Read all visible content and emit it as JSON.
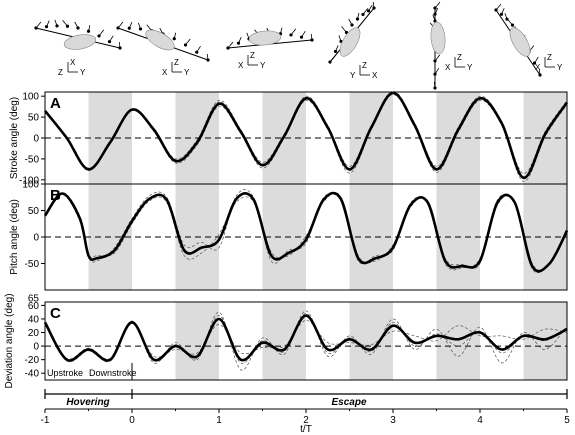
{
  "colors": {
    "shade": "#dcdcdc",
    "mean_line": "#000000",
    "indiv_line": "#555555",
    "zero_line": "#000000"
  },
  "header_panel": {
    "images": [
      {
        "name": "wing-sketch-1",
        "axes": [
          "X",
          "Z",
          "Y"
        ]
      },
      {
        "name": "wing-sketch-2",
        "axes": [
          "Z",
          "X",
          "Y"
        ]
      },
      {
        "name": "wing-sketch-3",
        "axes": [
          "Z",
          "X",
          "Y"
        ]
      },
      {
        "name": "wing-sketch-4",
        "axes": [
          "Z",
          "Y",
          "X"
        ]
      },
      {
        "name": "wing-sketch-5",
        "axes": [
          "Z",
          "X",
          "Y"
        ]
      },
      {
        "name": "wing-sketch-6",
        "axes": [
          "Z",
          "X",
          "Y"
        ]
      }
    ]
  },
  "labels": {
    "upstroke": "Upstroke",
    "downstroke": "Downstroke",
    "hovering": "Hovering",
    "escape": "Escape"
  },
  "chart_data": [
    {
      "type": "line",
      "panel": "A",
      "ylabel": "Stroke angle (deg)",
      "ylim": [
        -110,
        110
      ],
      "yticks": [
        -100,
        -50,
        0,
        50,
        100
      ],
      "xlim": [
        -1,
        5
      ],
      "shaded_intervals": [
        [
          -0.5,
          0
        ],
        [
          0.5,
          1
        ],
        [
          1.5,
          2
        ],
        [
          2.5,
          3
        ],
        [
          3.5,
          4
        ],
        [
          4.5,
          5
        ]
      ],
      "zero_line": 0,
      "series": [
        {
          "role": "mean",
          "x": [
            -1,
            -0.75,
            -0.5,
            -0.25,
            0,
            0.25,
            0.5,
            0.75,
            1,
            1.25,
            1.5,
            1.75,
            2,
            2.25,
            2.5,
            2.75,
            3,
            3.25,
            3.5,
            3.75,
            4,
            4.25,
            4.5,
            4.75,
            5
          ],
          "y": [
            65,
            0,
            -75,
            -10,
            68,
            20,
            -55,
            -10,
            82,
            15,
            -65,
            5,
            95,
            25,
            -75,
            25,
            108,
            30,
            -75,
            20,
            95,
            35,
            -95,
            10,
            85
          ]
        },
        {
          "role": "individual",
          "x": [
            -1,
            -0.75,
            -0.5,
            -0.25,
            0,
            0.25,
            0.5,
            0.75,
            1,
            1.25,
            1.5,
            1.75,
            2,
            2.25,
            2.5,
            2.75,
            3,
            3.25,
            3.5,
            3.75,
            4,
            4.25,
            4.5,
            4.75,
            5
          ],
          "y": [
            64,
            3,
            -72,
            -8,
            70,
            24,
            -50,
            -4,
            90,
            20,
            -58,
            10,
            100,
            30,
            -68,
            30,
            112,
            35,
            -68,
            26,
            100,
            40,
            -85,
            16,
            90
          ]
        },
        {
          "role": "individual",
          "x": [
            -1,
            -0.75,
            -0.5,
            -0.25,
            0,
            0.25,
            0.5,
            0.75,
            1,
            1.25,
            1.5,
            1.75,
            2,
            2.25,
            2.5,
            2.75,
            3,
            3.25,
            3.5,
            3.75,
            4,
            4.25,
            4.5,
            4.75,
            5
          ],
          "y": [
            66,
            -3,
            -78,
            -12,
            66,
            16,
            -60,
            -16,
            76,
            10,
            -72,
            0,
            90,
            20,
            -84,
            20,
            104,
            25,
            -82,
            14,
            90,
            30,
            -104,
            4,
            80
          ]
        },
        {
          "role": "individual",
          "x": [
            -1,
            -0.75,
            -0.5,
            -0.25,
            0,
            0.25,
            0.5,
            0.75,
            1,
            1.25,
            1.5,
            1.75,
            2,
            2.25,
            2.5,
            2.75,
            3,
            3.25,
            3.5,
            3.75,
            4,
            4.25,
            4.5,
            4.75,
            5
          ],
          "y": [
            65,
            1,
            -75,
            -9,
            68,
            22,
            -52,
            -8,
            86,
            16,
            -62,
            8,
            97,
            27,
            -78,
            27,
            108,
            32,
            -72,
            22,
            96,
            38,
            -98,
            12,
            86
          ]
        }
      ]
    },
    {
      "type": "line",
      "panel": "B",
      "ylabel": "Pitch angle (deg)",
      "ylim": [
        -100,
        100
      ],
      "yticks": [
        -50,
        0,
        50,
        100
      ],
      "xlim": [
        -1,
        5
      ],
      "shaded_intervals": [
        [
          -0.5,
          0
        ],
        [
          0.5,
          1
        ],
        [
          1.5,
          2
        ],
        [
          2.5,
          3
        ],
        [
          3.5,
          4
        ],
        [
          4.5,
          5
        ]
      ],
      "zero_line": 0,
      "series": [
        {
          "role": "mean",
          "x": [
            -1,
            -0.8,
            -0.6,
            -0.5,
            -0.4,
            -0.2,
            0,
            0.2,
            0.4,
            0.6,
            0.8,
            1,
            1.2,
            1.4,
            1.6,
            1.8,
            2,
            2.2,
            2.4,
            2.6,
            2.8,
            3,
            3.2,
            3.4,
            3.6,
            3.8,
            4,
            4.2,
            4.4,
            4.6,
            4.8,
            5
          ],
          "y": [
            40,
            82,
            35,
            -35,
            -40,
            -25,
            30,
            72,
            70,
            -25,
            -20,
            -5,
            72,
            70,
            -35,
            -30,
            -5,
            70,
            72,
            -40,
            -40,
            -20,
            60,
            65,
            -45,
            -55,
            -45,
            65,
            65,
            -55,
            -50,
            12
          ]
        },
        {
          "role": "individual",
          "x": [
            -1,
            -0.8,
            -0.6,
            -0.5,
            -0.4,
            -0.2,
            0,
            0.2,
            0.4,
            0.6,
            0.8,
            1,
            1.2,
            1.4,
            1.6,
            1.8,
            2,
            2.2,
            2.4,
            2.6,
            2.8,
            3,
            3.2,
            3.4,
            3.6,
            3.8,
            4,
            4.2,
            4.4,
            4.6,
            4.8,
            5
          ],
          "y": [
            38,
            80,
            30,
            -38,
            -45,
            -20,
            35,
            78,
            75,
            -15,
            -10,
            -20,
            78,
            74,
            -45,
            -25,
            -12,
            74,
            68,
            -45,
            -35,
            -25,
            64,
            62,
            -50,
            -58,
            -40,
            70,
            62,
            -60,
            -48,
            8
          ]
        },
        {
          "role": "individual",
          "x": [
            -1,
            -0.8,
            -0.6,
            -0.5,
            -0.4,
            -0.2,
            0,
            0.2,
            0.4,
            0.6,
            0.8,
            1,
            1.2,
            1.4,
            1.6,
            1.8,
            2,
            2.2,
            2.4,
            2.6,
            2.8,
            3,
            3.2,
            3.4,
            3.6,
            3.8,
            4,
            4.2,
            4.4,
            4.6,
            4.8,
            5
          ],
          "y": [
            42,
            84,
            40,
            -32,
            -35,
            -30,
            25,
            68,
            65,
            -35,
            -30,
            5,
            66,
            66,
            -28,
            -35,
            2,
            66,
            76,
            -35,
            -45,
            -15,
            56,
            68,
            -40,
            -52,
            -50,
            60,
            68,
            -50,
            -52,
            16
          ]
        }
      ]
    },
    {
      "type": "line",
      "panel": "C",
      "ylabel": "Deviation angle (deg)",
      "ylim": [
        -50,
        65
      ],
      "yticks": [
        -40,
        -20,
        0,
        20,
        40,
        60
      ],
      "extra_ytick": 65,
      "xlim": [
        -1,
        5
      ],
      "xticks": [
        -1,
        0,
        1,
        2,
        3,
        4,
        5
      ],
      "xlabel": "t/T",
      "shaded_intervals": [
        [
          0.5,
          1
        ],
        [
          1.5,
          2
        ],
        [
          2.5,
          3
        ],
        [
          3.5,
          4
        ],
        [
          4.5,
          5
        ]
      ],
      "zero_line": 0,
      "series": [
        {
          "role": "mean",
          "x": [
            -1,
            -0.75,
            -0.5,
            -0.25,
            0,
            0.25,
            0.5,
            0.75,
            1,
            1.25,
            1.5,
            1.75,
            2,
            2.25,
            2.5,
            2.75,
            3,
            3.25,
            3.5,
            3.75,
            4,
            4.25,
            4.5,
            4.75,
            5
          ],
          "y": [
            35,
            -20,
            -5,
            -20,
            35,
            -20,
            0,
            -15,
            40,
            -20,
            5,
            -5,
            45,
            -5,
            10,
            -5,
            30,
            5,
            15,
            10,
            20,
            -5,
            15,
            10,
            25
          ]
        },
        {
          "role": "individual",
          "x": [
            -1,
            -0.75,
            -0.5,
            -0.25,
            0,
            0.25,
            0.5,
            0.75,
            1,
            1.25,
            1.5,
            1.75,
            2,
            2.25,
            2.5,
            2.75,
            3,
            3.25,
            3.5,
            3.75,
            4,
            4.25,
            4.5,
            4.75,
            5
          ],
          "y": [
            34,
            -18,
            -3,
            -18,
            37,
            -25,
            5,
            -20,
            50,
            -35,
            12,
            -12,
            52,
            -15,
            15,
            -12,
            40,
            -5,
            25,
            -15,
            28,
            -25,
            20,
            -5,
            30
          ]
        },
        {
          "role": "individual",
          "x": [
            -1,
            -0.75,
            -0.5,
            -0.25,
            0,
            0.25,
            0.5,
            0.75,
            1,
            1.25,
            1.5,
            1.75,
            2,
            2.25,
            2.5,
            2.75,
            3,
            3.25,
            3.5,
            3.75,
            4,
            4.25,
            4.5,
            4.75,
            5
          ],
          "y": [
            36,
            -22,
            -7,
            -22,
            33,
            -15,
            -5,
            -10,
            32,
            -10,
            -2,
            0,
            38,
            5,
            5,
            2,
            22,
            15,
            8,
            30,
            15,
            15,
            10,
            25,
            20
          ]
        },
        {
          "role": "individual",
          "x": [
            -1,
            -0.75,
            -0.5,
            -0.25,
            0,
            0.25,
            0.5,
            0.75,
            1,
            1.25,
            1.5,
            1.75,
            2,
            2.25,
            2.5,
            2.75,
            3,
            3.25,
            3.5,
            3.75,
            4,
            4.25,
            4.5,
            4.75,
            5
          ],
          "y": [
            35,
            -19,
            -4,
            -19,
            35,
            -22,
            2,
            -18,
            45,
            -25,
            8,
            -8,
            48,
            -10,
            12,
            -8,
            35,
            0,
            18,
            0,
            22,
            -10,
            15,
            8,
            26
          ]
        }
      ]
    }
  ]
}
